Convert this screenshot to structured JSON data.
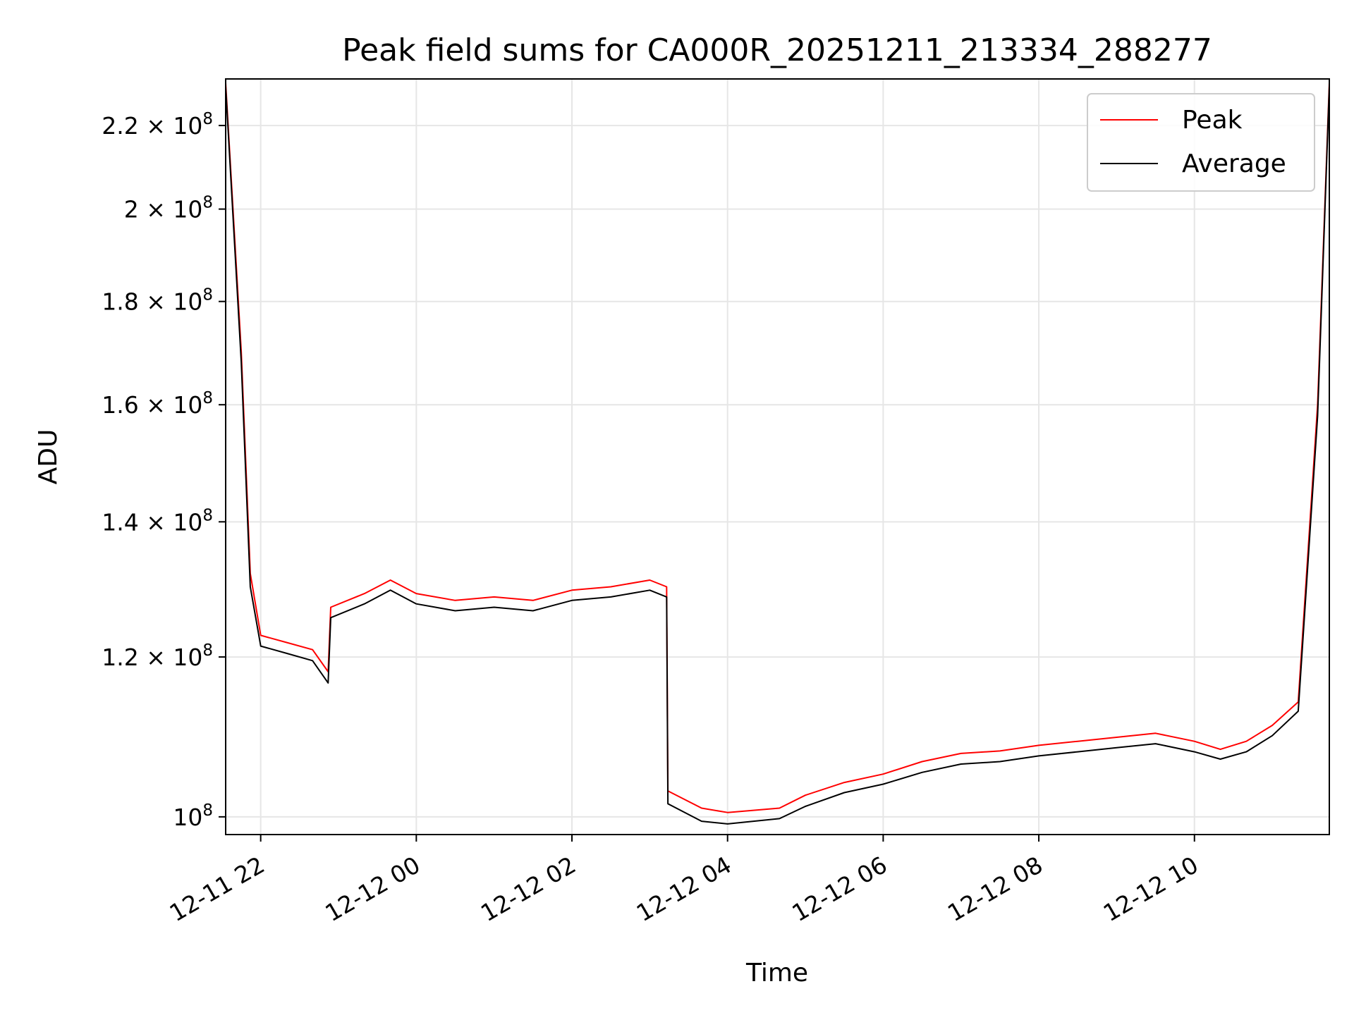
{
  "chart_data": {
    "type": "line",
    "title": "Peak field sums for CA000R_20251211_213334_288277",
    "xlabel": "Time",
    "ylabel": "ADU",
    "yscale": "log",
    "grid": true,
    "legend_position": "top-right",
    "xlim": [
      "2025-12-11 21:33",
      "2025-12-12 11:44"
    ],
    "ylim": [
      98000000,
      232000000
    ],
    "x_ticks": [
      {
        "value": "2025-12-11 22:00",
        "label": "12-11 22"
      },
      {
        "value": "2025-12-12 00:00",
        "label": "12-12 00"
      },
      {
        "value": "2025-12-12 02:00",
        "label": "12-12 02"
      },
      {
        "value": "2025-12-12 04:00",
        "label": "12-12 04"
      },
      {
        "value": "2025-12-12 06:00",
        "label": "12-12 06"
      },
      {
        "value": "2025-12-12 08:00",
        "label": "12-12 08"
      },
      {
        "value": "2025-12-12 10:00",
        "label": "12-12 10"
      }
    ],
    "y_ticks": [
      {
        "value": 100000000,
        "mantissa": "",
        "exponent": "8",
        "base": "10"
      },
      {
        "value": 120000000,
        "mantissa": "1.2",
        "exponent": "8",
        "base": "10"
      },
      {
        "value": 140000000,
        "mantissa": "1.4",
        "exponent": "8",
        "base": "10"
      },
      {
        "value": 160000000,
        "mantissa": "1.6",
        "exponent": "8",
        "base": "10"
      },
      {
        "value": 180000000,
        "mantissa": "1.8",
        "exponent": "8",
        "base": "10"
      },
      {
        "value": 200000000,
        "mantissa": "2",
        "exponent": "8",
        "base": "10"
      },
      {
        "value": 220000000,
        "mantissa": "2.2",
        "exponent": "8",
        "base": "10"
      }
    ],
    "series": [
      {
        "name": "Peak",
        "color": "#ff0000",
        "x": [
          "2025-12-11 21:33",
          "2025-12-11 21:45",
          "2025-12-11 21:52",
          "2025-12-11 22:00",
          "2025-12-11 22:20",
          "2025-12-11 22:40",
          "2025-12-11 22:52",
          "2025-12-11 22:54",
          "2025-12-11 23:20",
          "2025-12-11 23:40",
          "2025-12-12 00:00",
          "2025-12-12 00:30",
          "2025-12-12 01:00",
          "2025-12-12 01:30",
          "2025-12-12 02:00",
          "2025-12-12 02:30",
          "2025-12-12 03:00",
          "2025-12-12 03:13",
          "2025-12-12 03:14",
          "2025-12-12 03:40",
          "2025-12-12 04:00",
          "2025-12-12 04:40",
          "2025-12-12 05:00",
          "2025-12-12 05:30",
          "2025-12-12 06:00",
          "2025-12-12 06:30",
          "2025-12-12 07:00",
          "2025-12-12 07:30",
          "2025-12-12 08:00",
          "2025-12-12 08:30",
          "2025-12-12 09:00",
          "2025-12-12 09:30",
          "2025-12-12 10:00",
          "2025-12-12 10:20",
          "2025-12-12 10:40",
          "2025-12-12 11:00",
          "2025-12-12 11:20",
          "2025-12-12 11:35",
          "2025-12-12 11:44"
        ],
        "values": [
          231000000,
          170000000,
          132000000,
          123000000,
          122000000,
          121000000,
          118000000,
          127000000,
          129000000,
          131000000,
          129000000,
          128000000,
          128500000,
          128000000,
          129500000,
          130000000,
          131000000,
          130000000,
          103000000,
          101000000,
          100500000,
          101000000,
          102500000,
          104000000,
          105000000,
          106500000,
          107500000,
          107800000,
          108500000,
          109000000,
          109500000,
          110000000,
          109000000,
          108000000,
          109000000,
          111000000,
          114000000,
          160000000,
          231000000
        ]
      },
      {
        "name": "Average",
        "color": "#000000",
        "x": [
          "2025-12-11 21:33",
          "2025-12-11 21:45",
          "2025-12-11 21:52",
          "2025-12-11 22:00",
          "2025-12-11 22:20",
          "2025-12-11 22:40",
          "2025-12-11 22:52",
          "2025-12-11 22:54",
          "2025-12-11 23:20",
          "2025-12-11 23:40",
          "2025-12-12 00:00",
          "2025-12-12 00:30",
          "2025-12-12 01:00",
          "2025-12-12 01:30",
          "2025-12-12 02:00",
          "2025-12-12 02:30",
          "2025-12-12 03:00",
          "2025-12-12 03:13",
          "2025-12-12 03:14",
          "2025-12-12 03:40",
          "2025-12-12 04:00",
          "2025-12-12 04:40",
          "2025-12-12 05:00",
          "2025-12-12 05:30",
          "2025-12-12 06:00",
          "2025-12-12 06:30",
          "2025-12-12 07:00",
          "2025-12-12 07:30",
          "2025-12-12 08:00",
          "2025-12-12 08:30",
          "2025-12-12 09:00",
          "2025-12-12 09:30",
          "2025-12-12 10:00",
          "2025-12-12 10:20",
          "2025-12-12 10:40",
          "2025-12-12 11:00",
          "2025-12-12 11:20",
          "2025-12-12 11:35",
          "2025-12-12 11:44"
        ],
        "values": [
          230000000,
          168000000,
          130000000,
          121500000,
          120500000,
          119500000,
          116500000,
          125500000,
          127500000,
          129500000,
          127500000,
          126500000,
          127000000,
          126500000,
          128000000,
          128500000,
          129500000,
          128500000,
          101500000,
          99500000,
          99200000,
          99800000,
          101200000,
          102800000,
          103800000,
          105200000,
          106200000,
          106500000,
          107200000,
          107700000,
          108200000,
          108700000,
          107700000,
          106800000,
          107700000,
          109700000,
          112800000,
          158000000,
          230000000
        ]
      }
    ]
  }
}
